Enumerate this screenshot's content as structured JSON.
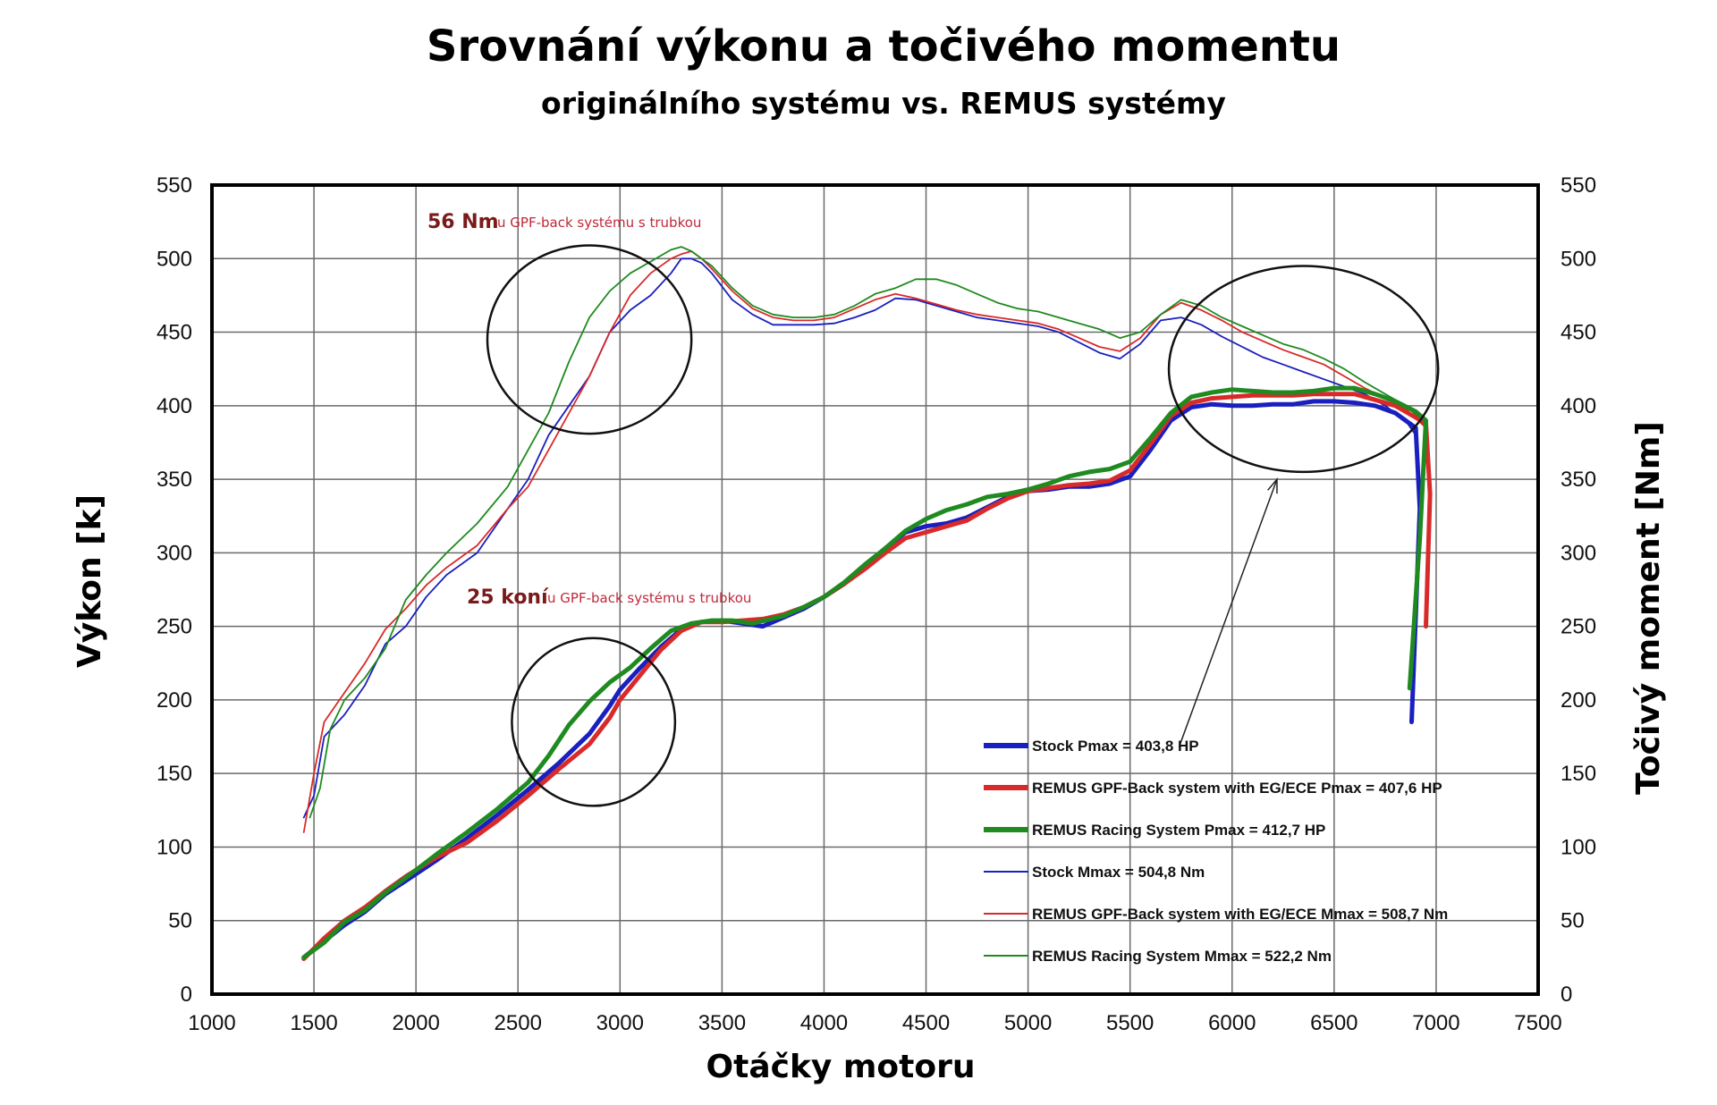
{
  "chart_data": {
    "type": "line",
    "title": "Srovnání výkonu a točivého momentu",
    "subtitle": "originálního systému vs. REMUS systémy",
    "xlabel": "Otáčky motoru",
    "ylabel": "Výkon [k]",
    "ylabel_right": "Točivý moment [Nm]",
    "xlim": [
      1000,
      7500
    ],
    "ylim": [
      0,
      550
    ],
    "y2lim": [
      0,
      550
    ],
    "x_ticks": [
      1000,
      1500,
      2000,
      2500,
      3000,
      3500,
      4000,
      4500,
      5000,
      5500,
      6000,
      6500,
      7000,
      7500
    ],
    "y_ticks": [
      0,
      50,
      100,
      150,
      200,
      250,
      300,
      350,
      400,
      450,
      500,
      550
    ],
    "grid": true,
    "legend_position": "bottom-right",
    "annotations": [
      {
        "big": "56 Nm",
        "small": "u GPF-back systému s trubkou"
      },
      {
        "big": "25 koní",
        "small": "u GPF-back systému s trubkou"
      }
    ],
    "highlights": [
      {
        "cx": 2850,
        "cy": 445,
        "rx": 500,
        "ry": 64
      },
      {
        "cx": 6350,
        "cy": 425,
        "rx": 660,
        "ry": 70
      },
      {
        "cx": 2870,
        "cy": 185,
        "rx": 400,
        "ry": 57
      }
    ],
    "arrow": {
      "from": [
        6220,
        350
      ],
      "to": [
        5740,
        168
      ]
    },
    "series": [
      {
        "name": "Stock Pmax = 403,8 HP",
        "color": "#1a1fbf",
        "weight": "thick",
        "x": [
          1450,
          1550,
          1650,
          1750,
          1850,
          1950,
          2100,
          2250,
          2400,
          2550,
          2700,
          2850,
          2950,
          3000,
          3100,
          3200,
          3300,
          3400,
          3500,
          3600,
          3700,
          3800,
          3900,
          4000,
          4100,
          4200,
          4300,
          4400,
          4500,
          4600,
          4700,
          4800,
          4900,
          5000,
          5100,
          5200,
          5300,
          5400,
          5500,
          5600,
          5700,
          5800,
          5900,
          6000,
          6100,
          6200,
          6300,
          6400,
          6500,
          6600,
          6700,
          6800,
          6850,
          6900,
          6920,
          6880
        ],
        "values": [
          25,
          36,
          47,
          56,
          68,
          77,
          91,
          106,
          122,
          139,
          157,
          177,
          196,
          207,
          222,
          236,
          248,
          253,
          254,
          252,
          250,
          256,
          262,
          270,
          279,
          291,
          303,
          314,
          318,
          320,
          324,
          331,
          338,
          342,
          343,
          345,
          345,
          347,
          352,
          370,
          390,
          399,
          401,
          400,
          400,
          401,
          401,
          403,
          403,
          402,
          400,
          395,
          390,
          385,
          330,
          185
        ]
      },
      {
        "name": "REMUS GPF-Back system with EG/ECE Pmax = 407,6 HP",
        "color": "#d92a2a",
        "weight": "thick",
        "x": [
          1450,
          1550,
          1650,
          1750,
          1850,
          1950,
          2100,
          2250,
          2400,
          2550,
          2700,
          2850,
          2950,
          3000,
          3100,
          3200,
          3300,
          3400,
          3500,
          3600,
          3700,
          3800,
          3900,
          4000,
          4100,
          4200,
          4300,
          4400,
          4500,
          4600,
          4700,
          4800,
          4900,
          5000,
          5100,
          5200,
          5300,
          5400,
          5500,
          5600,
          5700,
          5800,
          5900,
          6000,
          6100,
          6200,
          6300,
          6400,
          6500,
          6600,
          6700,
          6800,
          6900,
          6950,
          6970,
          6950
        ],
        "values": [
          24,
          38,
          50,
          59,
          70,
          80,
          93,
          103,
          118,
          135,
          153,
          170,
          188,
          200,
          217,
          234,
          247,
          253,
          253,
          254,
          255,
          258,
          263,
          270,
          279,
          289,
          300,
          310,
          314,
          318,
          322,
          330,
          337,
          342,
          344,
          346,
          347,
          349,
          356,
          374,
          393,
          402,
          405,
          406,
          407,
          407,
          407,
          408,
          408,
          408,
          404,
          400,
          392,
          388,
          340,
          250
        ]
      },
      {
        "name": "REMUS Racing System Pmax = 412,7 HP",
        "color": "#1f8a1f",
        "weight": "thick",
        "x": [
          1450,
          1550,
          1650,
          1750,
          1850,
          1950,
          2100,
          2250,
          2400,
          2550,
          2650,
          2750,
          2850,
          2950,
          3050,
          3150,
          3250,
          3350,
          3450,
          3550,
          3650,
          3800,
          3900,
          4000,
          4100,
          4200,
          4300,
          4400,
          4500,
          4600,
          4700,
          4800,
          4900,
          5000,
          5100,
          5200,
          5300,
          5400,
          5500,
          5600,
          5700,
          5800,
          5900,
          6000,
          6100,
          6200,
          6300,
          6400,
          6500,
          6600,
          6700,
          6800,
          6900,
          6950,
          6920,
          6870
        ],
        "values": [
          25,
          35,
          49,
          57,
          69,
          79,
          95,
          110,
          126,
          144,
          162,
          183,
          199,
          212,
          222,
          235,
          247,
          252,
          254,
          254,
          252,
          257,
          263,
          270,
          280,
          292,
          303,
          315,
          323,
          329,
          333,
          338,
          340,
          343,
          347,
          352,
          355,
          357,
          362,
          378,
          395,
          406,
          409,
          411,
          410,
          409,
          409,
          410,
          412,
          412,
          408,
          403,
          396,
          390,
          310,
          208
        ]
      },
      {
        "name": "Stock Mmax =  504,8 Nm",
        "color": "#1a1fbf",
        "weight": "thin",
        "x": [
          1450,
          1500,
          1550,
          1650,
          1750,
          1850,
          1950,
          2050,
          2150,
          2300,
          2450,
          2550,
          2650,
          2750,
          2850,
          2950,
          3050,
          3150,
          3250,
          3300,
          3350,
          3400,
          3450,
          3550,
          3650,
          3750,
          3850,
          3950,
          4050,
          4150,
          4250,
          4350,
          4450,
          4550,
          4650,
          4750,
          4850,
          4950,
          5050,
          5150,
          5250,
          5350,
          5450,
          5550,
          5650,
          5750,
          5850,
          5950,
          6050,
          6150,
          6250,
          6350,
          6450,
          6550,
          6650,
          6750,
          6850,
          6900
        ],
        "values": [
          120,
          135,
          175,
          190,
          210,
          238,
          250,
          270,
          285,
          300,
          330,
          350,
          380,
          400,
          420,
          450,
          465,
          475,
          490,
          500,
          500,
          497,
          490,
          472,
          462,
          455,
          455,
          455,
          456,
          460,
          465,
          473,
          472,
          468,
          464,
          460,
          458,
          456,
          454,
          450,
          443,
          436,
          432,
          442,
          458,
          460,
          455,
          447,
          440,
          433,
          428,
          423,
          418,
          413,
          408,
          400,
          390,
          380
        ]
      },
      {
        "name": "REMUS GPF-Back system with EG/ECE Mmax = 508,7 Nm",
        "color": "#d92a2a",
        "weight": "thin",
        "x": [
          1450,
          1500,
          1550,
          1650,
          1750,
          1850,
          1950,
          2050,
          2150,
          2300,
          2450,
          2550,
          2650,
          2750,
          2850,
          2950,
          3050,
          3150,
          3250,
          3300,
          3350,
          3400,
          3450,
          3550,
          3650,
          3750,
          3850,
          3950,
          4050,
          4150,
          4250,
          4350,
          4450,
          4550,
          4650,
          4750,
          4850,
          4950,
          5050,
          5150,
          5250,
          5350,
          5450,
          5550,
          5650,
          5750,
          5850,
          5950,
          6050,
          6150,
          6250,
          6350,
          6450,
          6550,
          6650,
          6750,
          6850,
          6950
        ],
        "values": [
          110,
          150,
          185,
          205,
          225,
          248,
          262,
          278,
          290,
          305,
          330,
          345,
          370,
          395,
          420,
          450,
          475,
          490,
          500,
          503,
          505,
          500,
          493,
          478,
          466,
          460,
          458,
          458,
          460,
          466,
          472,
          476,
          473,
          469,
          465,
          462,
          460,
          458,
          456,
          452,
          446,
          440,
          437,
          446,
          462,
          470,
          465,
          458,
          450,
          444,
          438,
          433,
          428,
          420,
          412,
          405,
          398,
          385
        ]
      },
      {
        "name": "REMUS Racing System Mmax =  522,2 Nm",
        "color": "#1f8a1f",
        "weight": "thin",
        "x": [
          1480,
          1530,
          1580,
          1650,
          1750,
          1850,
          1950,
          2050,
          2150,
          2300,
          2450,
          2550,
          2650,
          2750,
          2850,
          2950,
          3050,
          3150,
          3250,
          3300,
          3350,
          3400,
          3450,
          3550,
          3650,
          3750,
          3850,
          3950,
          4050,
          4150,
          4250,
          4350,
          4450,
          4550,
          4650,
          4750,
          4850,
          4950,
          5050,
          5150,
          5250,
          5350,
          5450,
          5550,
          5650,
          5750,
          5850,
          5950,
          6050,
          6150,
          6250,
          6350,
          6450,
          6550,
          6650,
          6750,
          6850,
          6950
        ],
        "values": [
          120,
          140,
          180,
          200,
          215,
          235,
          268,
          285,
          300,
          320,
          345,
          370,
          395,
          430,
          460,
          478,
          490,
          498,
          506,
          508,
          505,
          500,
          495,
          480,
          468,
          462,
          460,
          460,
          462,
          468,
          476,
          480,
          486,
          486,
          482,
          476,
          470,
          466,
          464,
          460,
          456,
          452,
          446,
          450,
          462,
          472,
          468,
          460,
          454,
          448,
          442,
          438,
          432,
          425,
          416,
          408,
          400,
          388
        ]
      }
    ]
  }
}
